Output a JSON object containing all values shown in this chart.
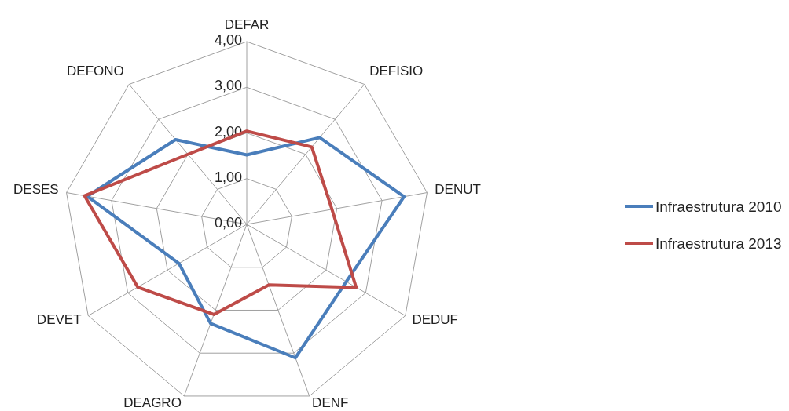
{
  "chart_data": {
    "type": "radar",
    "categories": [
      "DEFAR",
      "DEFISIO",
      "DENUT",
      "DEDUF",
      "DENF",
      "DEAGRO",
      "DEVET",
      "DESES",
      "DEFONO"
    ],
    "series": [
      {
        "name": "Infraestrutura 2010",
        "color": "#4a7ebb",
        "values": [
          1.52,
          2.48,
          3.49,
          2.51,
          3.11,
          2.31,
          1.71,
          3.54,
          2.42
        ]
      },
      {
        "name": "Infraestrutura 2013",
        "color": "#be4b48",
        "values": [
          2.04,
          2.21,
          1.89,
          2.76,
          1.41,
          2.1,
          2.75,
          3.6,
          2.0
        ]
      }
    ],
    "ylim": [
      0,
      4
    ],
    "yticks": [
      {
        "value": 0,
        "label": "0,00"
      },
      {
        "value": 1,
        "label": "1,00"
      },
      {
        "value": 2,
        "label": "2,00"
      },
      {
        "value": 3,
        "label": "3,00"
      },
      {
        "value": 4,
        "label": "4,00"
      }
    ],
    "grid": true,
    "legend": "right"
  }
}
